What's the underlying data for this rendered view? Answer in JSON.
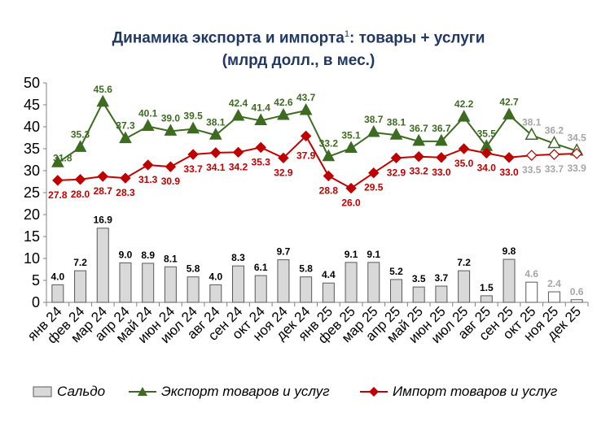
{
  "title_line1": "Динамика экспорта и импорта",
  "title_sup": "1",
  "title_line1_suffix": ": товары + услуги",
  "title_line2": "(млрд долл., в мес.)",
  "chart_data": {
    "type": "bar+line",
    "categories": [
      "янв 24",
      "фев 24",
      "мар 24",
      "апр 24",
      "май 24",
      "июн 24",
      "июл 24",
      "авг 24",
      "сен 24",
      "окт 24",
      "ноя 24",
      "дек 24",
      "янв 25",
      "фев 25",
      "мар 25",
      "апр 25",
      "май 25",
      "июн 25",
      "июл 25",
      "авг 25",
      "сен 25",
      "окт 25",
      "ноя 25",
      "дек 25"
    ],
    "ylim": [
      0,
      50
    ],
    "yticks": [
      0,
      5,
      10,
      15,
      20,
      25,
      30,
      35,
      40,
      45,
      50
    ],
    "grid": false,
    "estimated_from_index": 21,
    "series": [
      {
        "name": "Сальдо",
        "kind": "bar",
        "values": [
          4.0,
          7.2,
          16.9,
          9.0,
          8.9,
          8.1,
          5.8,
          4.0,
          8.3,
          6.1,
          9.7,
          5.8,
          4.4,
          9.1,
          9.1,
          5.2,
          3.5,
          3.7,
          7.2,
          1.5,
          9.8,
          4.6,
          2.4,
          0.6
        ],
        "labels": [
          "4.0",
          "7.2",
          "16.9",
          "9.0",
          "8.9",
          "8.1",
          "5.8",
          "4.0",
          "8.3",
          "6.1",
          "9.7",
          "5.8",
          "4.4",
          "9.1",
          "9.1",
          "5.2",
          "3.5",
          "3.7",
          "7.2",
          "1.5",
          "9.8",
          "4.6",
          "2.4",
          "0.6"
        ]
      },
      {
        "name": "Экспорт товаров и услуг",
        "kind": "line",
        "marker": "triangle",
        "values": [
          31.8,
          35.3,
          45.6,
          37.3,
          40.1,
          39.0,
          39.5,
          38.1,
          42.4,
          41.4,
          42.6,
          43.7,
          33.2,
          35.1,
          38.7,
          38.1,
          36.7,
          36.7,
          42.2,
          35.5,
          42.7,
          38.1,
          36.2,
          34.5
        ],
        "labels": [
          "31.8",
          "35.3",
          "45.6",
          "37.3",
          "40.1",
          "39.0",
          "39.5",
          "38.1",
          "42.4",
          "41.4",
          "42.6",
          "43.7",
          "33.2",
          "35.1",
          "38.7",
          "38.1",
          "36.7",
          "36.7",
          "42.2",
          "35.5",
          "42.7",
          "38.1",
          "36.2",
          "34.5"
        ]
      },
      {
        "name": "Импорт товаров и услуг",
        "kind": "line",
        "marker": "diamond",
        "values": [
          27.8,
          28.0,
          28.7,
          28.3,
          31.3,
          30.9,
          33.7,
          34.1,
          34.2,
          35.3,
          32.9,
          37.9,
          28.8,
          26.0,
          29.5,
          32.9,
          33.2,
          33.0,
          35.0,
          34.0,
          33.0,
          33.5,
          33.7,
          33.9
        ],
        "labels": [
          "27.8",
          "28.0",
          "28.7",
          "28.3",
          "31.3",
          "30.9",
          "33.7",
          "34.1",
          "34.2",
          "35.3",
          "32.9",
          "37.9",
          "28.8",
          "26.0",
          "29.5",
          "32.9",
          "33.2",
          "33.0",
          "35.0",
          "34.0",
          "33.0",
          "33.5",
          "33.7",
          "33.9"
        ]
      }
    ],
    "legend": [
      "Сальдо",
      "Экспорт товаров и услуг",
      "Импорт товаров и услуг"
    ]
  },
  "colors": {
    "export": "#3d6b22",
    "import": "#c00000",
    "bar_fill": "#d9d9d9",
    "bar_stroke": "#595959",
    "estimate_text": "#a6a6a6",
    "title": "#1f3864"
  }
}
